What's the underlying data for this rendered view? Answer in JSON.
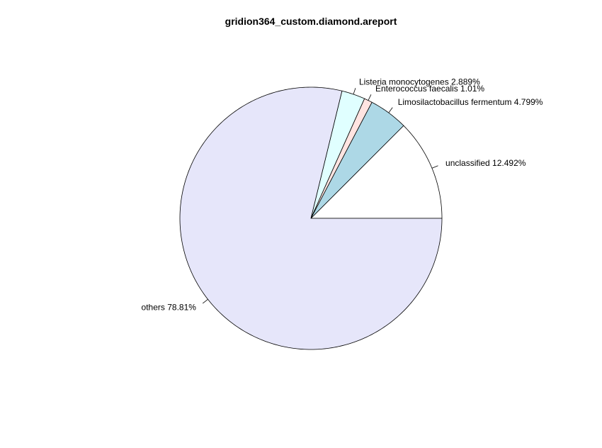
{
  "chart_data": {
    "type": "pie",
    "title": "gridion364_custom.diamond.areport",
    "start_angle_deg": 0,
    "direction": "counterclockwise",
    "slices": [
      {
        "name": "unclassified",
        "percent": 12.492,
        "label": "unclassified 12.492%",
        "color": "#ffffff"
      },
      {
        "name": "Limosilactobacillus fermentum",
        "percent": 4.799,
        "label": "Limosilactobacillus fermentum 4.799%",
        "color": "#add8e6"
      },
      {
        "name": "Enterococcus faecalis",
        "percent": 1.01,
        "label": "Enterococcus faecalis 1.01%",
        "color": "#ffe4e1"
      },
      {
        "name": "Listeria monocytogenes",
        "percent": 2.889,
        "label": "Listeria monocytogenes 2.889%",
        "color": "#e0ffff"
      },
      {
        "name": "others",
        "percent": 78.81,
        "label": "others 78.81%",
        "color": "#e6e6fa"
      }
    ]
  }
}
